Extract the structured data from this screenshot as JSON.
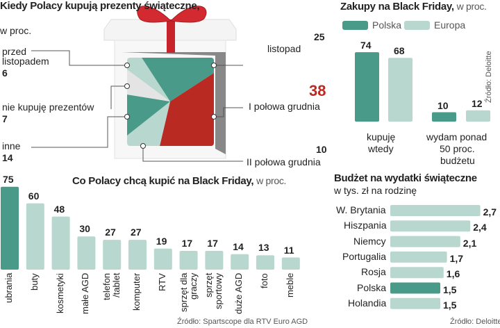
{
  "colors": {
    "teal": "#4a9a8a",
    "light": "#b8d8cf",
    "red": "#b82a22",
    "grey": "#e4e4e4"
  },
  "chart_data": [
    {
      "type": "pie",
      "title": "Kiedy Polacy kupują prezenty świąteczne,",
      "subtitle": "w proc.",
      "slices": [
        {
          "label": "listopad",
          "value": 25,
          "color": "#4a9a8a"
        },
        {
          "label": "I połowa grudnia",
          "value": 38,
          "color": "#b82a22"
        },
        {
          "label": "II połowa grudnia",
          "value": 10,
          "color": "#b8d8cf"
        },
        {
          "label": "inne",
          "value": 14,
          "color": "#4a9a8a"
        },
        {
          "label": "nie kupuję prezentów",
          "value": 7,
          "color": "#e4e4e4"
        },
        {
          "label": "przed listopadem",
          "value": 6,
          "color": "#b8d8cf"
        }
      ]
    },
    {
      "type": "bar",
      "title": "Zakupy na Black Friday,",
      "subtitle": "w proc.",
      "source": "Źródło: Deloitte",
      "categories": [
        "kupuję wtedy",
        "wydam ponad 50 proc. budżetu"
      ],
      "series": [
        {
          "name": "Polska",
          "values": [
            74,
            10
          ],
          "color": "#4a9a8a"
        },
        {
          "name": "Europa",
          "values": [
            68,
            12
          ],
          "color": "#b8d8cf"
        }
      ]
    },
    {
      "type": "bar",
      "title": "Co Polacy chcą kupić na Black Friday,",
      "subtitle": "w proc.",
      "source": "Źródło: Spartscope dla RTV Euro AGD",
      "categories": [
        "ubrania",
        "buty",
        "kosmetyki",
        "małe AGD",
        "telefon /tablet",
        "komputer",
        "RTV",
        "sprzęt dla graczy",
        "sprzęt sportowy",
        "duże AGD",
        "foto",
        "meble"
      ],
      "values": [
        75,
        60,
        48,
        30,
        27,
        27,
        19,
        17,
        17,
        14,
        13,
        11
      ],
      "highlight": "ubrania"
    },
    {
      "type": "bar",
      "orientation": "horizontal",
      "title": "Budżet na wydatki świąteczne",
      "subtitle": "w tys. zł na rodzinę",
      "source": "Źródło: Deloitte",
      "categories": [
        "W. Brytania",
        "Hiszpania",
        "Niemcy",
        "Portugalia",
        "Rosja",
        "Polska",
        "Holandia"
      ],
      "values": [
        "2,7",
        "2,4",
        "2,1",
        "1,7",
        "1,6",
        "1,5",
        "1,5"
      ],
      "highlight": "Polska"
    }
  ]
}
